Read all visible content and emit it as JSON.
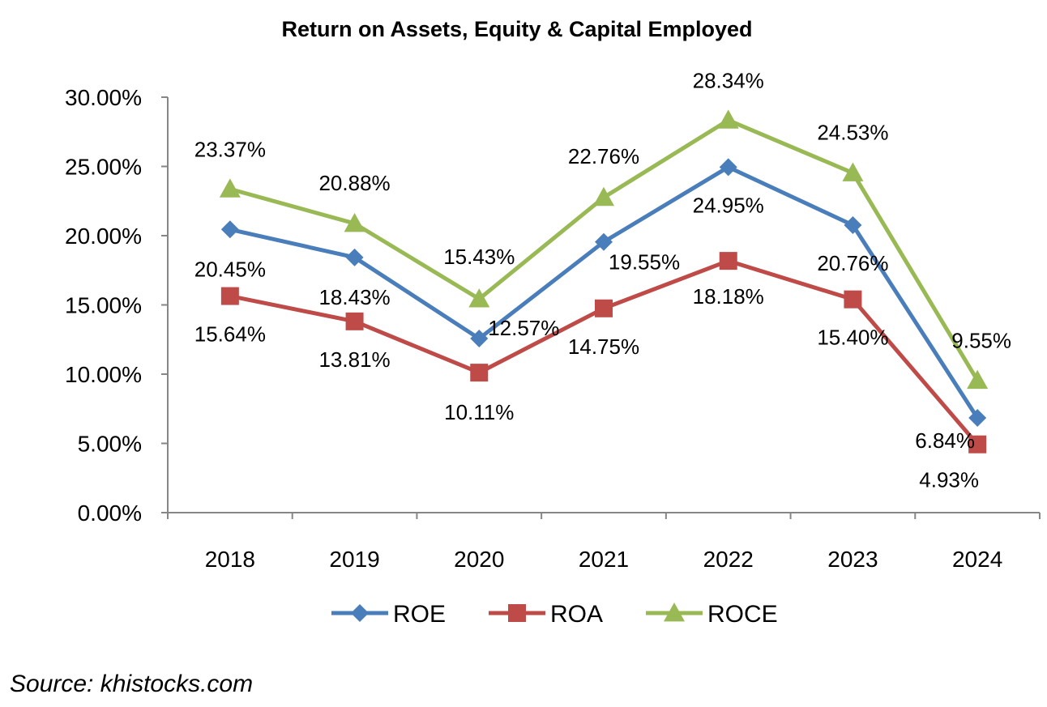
{
  "chart_data": {
    "type": "line",
    "title": "Return on Assets, Equity & Capital Employed",
    "xlabel": "",
    "ylabel": "",
    "categories": [
      "2018",
      "2019",
      "2020",
      "2021",
      "2022",
      "2023",
      "2024"
    ],
    "ylim": [
      0,
      30
    ],
    "yticks": [
      {
        "value": 0,
        "label": "0.00%"
      },
      {
        "value": 5,
        "label": "5.00%"
      },
      {
        "value": 10,
        "label": "10.00%"
      },
      {
        "value": 15,
        "label": "15.00%"
      },
      {
        "value": 20,
        "label": "20.00%"
      },
      {
        "value": 25,
        "label": "25.00%"
      },
      {
        "value": 30,
        "label": "30.00%"
      }
    ],
    "grid": false,
    "legend": "bottom",
    "series": [
      {
        "name": "ROE",
        "color": "#4a7ebb",
        "marker": "diamond",
        "values": [
          20.45,
          18.43,
          12.57,
          19.55,
          24.95,
          20.76,
          6.84
        ],
        "labels": [
          "20.45%",
          "18.43%",
          "12.57%",
          "19.55%",
          "24.95%",
          "20.76%",
          "6.84%"
        ]
      },
      {
        "name": "ROA",
        "color": "#be4b48",
        "marker": "square",
        "values": [
          15.64,
          13.81,
          10.11,
          14.75,
          18.18,
          15.4,
          4.93
        ],
        "labels": [
          "15.64%",
          "13.81%",
          "10.11%",
          "14.75%",
          "18.18%",
          "15.40%",
          "4.93%"
        ]
      },
      {
        "name": "ROCE",
        "color": "#98b954",
        "marker": "triangle",
        "values": [
          23.37,
          20.88,
          15.43,
          22.76,
          28.34,
          24.53,
          9.55
        ],
        "labels": [
          "23.37%",
          "20.88%",
          "15.43%",
          "22.76%",
          "28.34%",
          "24.53%",
          "9.55%"
        ]
      }
    ]
  },
  "source": "Source: khistocks.com"
}
